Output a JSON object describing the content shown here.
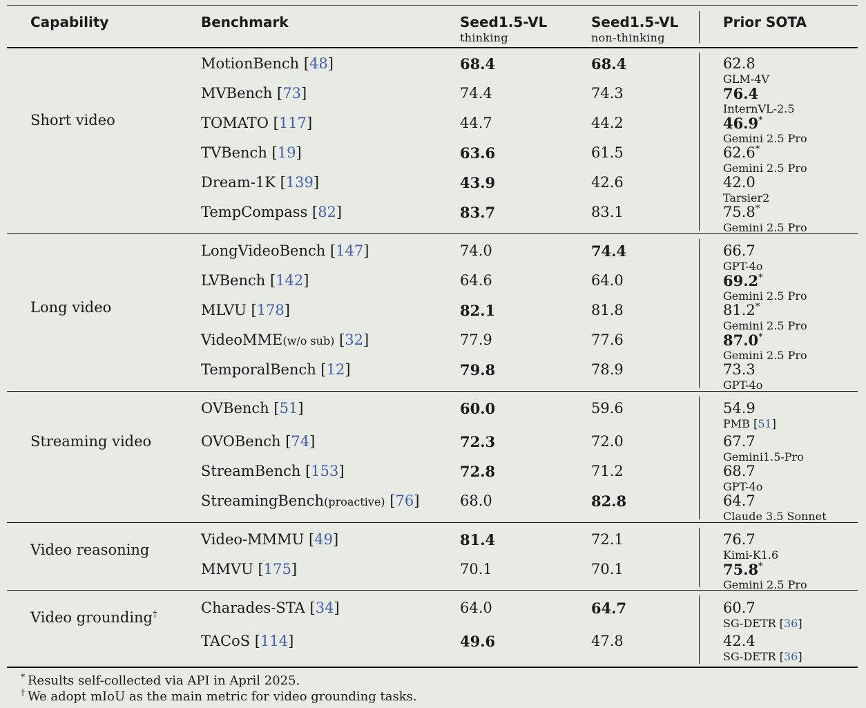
{
  "header": {
    "capability": "Capability",
    "benchmark": "Benchmark",
    "col1": "Seed1.5-VL",
    "col1_sub": "thinking",
    "col2": "Seed1.5-VL",
    "col2_sub": "non-thinking",
    "col3": "Prior SOTA"
  },
  "groups": [
    {
      "label": "Short video",
      "sup": "",
      "rows": [
        {
          "name": "MotionBench",
          "small": "",
          "cite": "48",
          "t": "68.4",
          "tb": true,
          "n": "68.4",
          "nb": true,
          "s": "62.8",
          "sb": false,
          "star": false,
          "model": "GLM-4V",
          "mcite": ""
        },
        {
          "name": "MVBench",
          "small": "",
          "cite": "73",
          "t": "74.4",
          "tb": false,
          "n": "74.3",
          "nb": false,
          "s": "76.4",
          "sb": true,
          "star": false,
          "model": "InternVL-2.5",
          "mcite": ""
        },
        {
          "name": "TOMATO",
          "small": "",
          "cite": "117",
          "t": "44.7",
          "tb": false,
          "n": "44.2",
          "nb": false,
          "s": "46.9",
          "sb": true,
          "star": true,
          "model": "Gemini 2.5 Pro",
          "mcite": ""
        },
        {
          "name": "TVBench",
          "small": "",
          "cite": "19",
          "t": "63.6",
          "tb": true,
          "n": "61.5",
          "nb": false,
          "s": "62.6",
          "sb": false,
          "star": true,
          "model": "Gemini 2.5 Pro",
          "mcite": ""
        },
        {
          "name": "Dream-1K",
          "small": "",
          "cite": "139",
          "t": "43.9",
          "tb": true,
          "n": "42.6",
          "nb": false,
          "s": "42.0",
          "sb": false,
          "star": false,
          "model": "Tarsier2",
          "mcite": ""
        },
        {
          "name": "TempCompass",
          "small": "",
          "cite": "82",
          "t": "83.7",
          "tb": true,
          "n": "83.1",
          "nb": false,
          "s": "75.8",
          "sb": false,
          "star": true,
          "model": "Gemini 2.5 Pro",
          "mcite": ""
        }
      ]
    },
    {
      "label": "Long video",
      "sup": "",
      "rows": [
        {
          "name": "LongVideoBench",
          "small": "",
          "cite": "147",
          "t": "74.0",
          "tb": false,
          "n": "74.4",
          "nb": true,
          "s": "66.7",
          "sb": false,
          "star": false,
          "model": "GPT-4o",
          "mcite": ""
        },
        {
          "name": "LVBench",
          "small": "",
          "cite": "142",
          "t": "64.6",
          "tb": false,
          "n": "64.0",
          "nb": false,
          "s": "69.2",
          "sb": true,
          "star": true,
          "model": "Gemini 2.5 Pro",
          "mcite": ""
        },
        {
          "name": "MLVU",
          "small": "",
          "cite": "178",
          "t": "82.1",
          "tb": true,
          "n": "81.8",
          "nb": false,
          "s": "81.2",
          "sb": false,
          "star": true,
          "model": "Gemini 2.5 Pro",
          "mcite": ""
        },
        {
          "name": "VideoMME",
          "small": "(w/o sub)",
          "cite": "32",
          "t": "77.9",
          "tb": false,
          "n": "77.6",
          "nb": false,
          "s": "87.0",
          "sb": true,
          "star": true,
          "model": "Gemini 2.5 Pro",
          "mcite": ""
        },
        {
          "name": "TemporalBench",
          "small": "",
          "cite": "12",
          "t": "79.8",
          "tb": true,
          "n": "78.9",
          "nb": false,
          "s": "73.3",
          "sb": false,
          "star": false,
          "model": "GPT-4o",
          "mcite": ""
        }
      ]
    },
    {
      "label": "Streaming video",
      "sup": "",
      "rows": [
        {
          "name": "OVBench",
          "small": "",
          "cite": "51",
          "t": "60.0",
          "tb": true,
          "n": "59.6",
          "nb": false,
          "s": "54.9",
          "sb": false,
          "star": false,
          "model": "PMB",
          "mcite": "51"
        },
        {
          "name": "OVOBench",
          "small": "",
          "cite": "74",
          "t": "72.3",
          "tb": true,
          "n": "72.0",
          "nb": false,
          "s": "67.7",
          "sb": false,
          "star": false,
          "model": "Gemini1.5-Pro",
          "mcite": ""
        },
        {
          "name": "StreamBench",
          "small": "",
          "cite": "153",
          "t": "72.8",
          "tb": true,
          "n": "71.2",
          "nb": false,
          "s": "68.7",
          "sb": false,
          "star": false,
          "model": "GPT-4o",
          "mcite": ""
        },
        {
          "name": "StreamingBench",
          "small": "(proactive)",
          "cite": "76",
          "t": "68.0",
          "tb": false,
          "n": "82.8",
          "nb": true,
          "s": "64.7",
          "sb": false,
          "star": false,
          "model": "Claude 3.5 Sonnet",
          "mcite": ""
        }
      ]
    },
    {
      "label": "Video reasoning",
      "sup": "",
      "rows": [
        {
          "name": "Video-MMMU",
          "small": "",
          "cite": "49",
          "t": "81.4",
          "tb": true,
          "n": "72.1",
          "nb": false,
          "s": "76.7",
          "sb": false,
          "star": false,
          "model": "Kimi-K1.6",
          "mcite": ""
        },
        {
          "name": "MMVU",
          "small": "",
          "cite": "175",
          "t": "70.1",
          "tb": false,
          "n": "70.1",
          "nb": false,
          "s": "75.8",
          "sb": true,
          "star": true,
          "model": "Gemini 2.5 Pro",
          "mcite": ""
        }
      ]
    },
    {
      "label": "Video grounding",
      "sup": "†",
      "rows": [
        {
          "name": "Charades-STA",
          "small": "",
          "cite": "34",
          "t": "64.0",
          "tb": false,
          "n": "64.7",
          "nb": true,
          "s": "60.7",
          "sb": false,
          "star": false,
          "model": "SG-DETR",
          "mcite": "36"
        },
        {
          "name": "TACoS",
          "small": "",
          "cite": "114",
          "t": "49.6",
          "tb": true,
          "n": "47.8",
          "nb": false,
          "s": "42.4",
          "sb": false,
          "star": false,
          "model": "SG-DETR",
          "mcite": "36"
        }
      ]
    }
  ],
  "footnotes": [
    {
      "mark": "*",
      "text": "Results self-collected via API in April 2025."
    },
    {
      "mark": "†",
      "text": "We adopt mIoU as the main metric for video grounding tasks."
    }
  ]
}
